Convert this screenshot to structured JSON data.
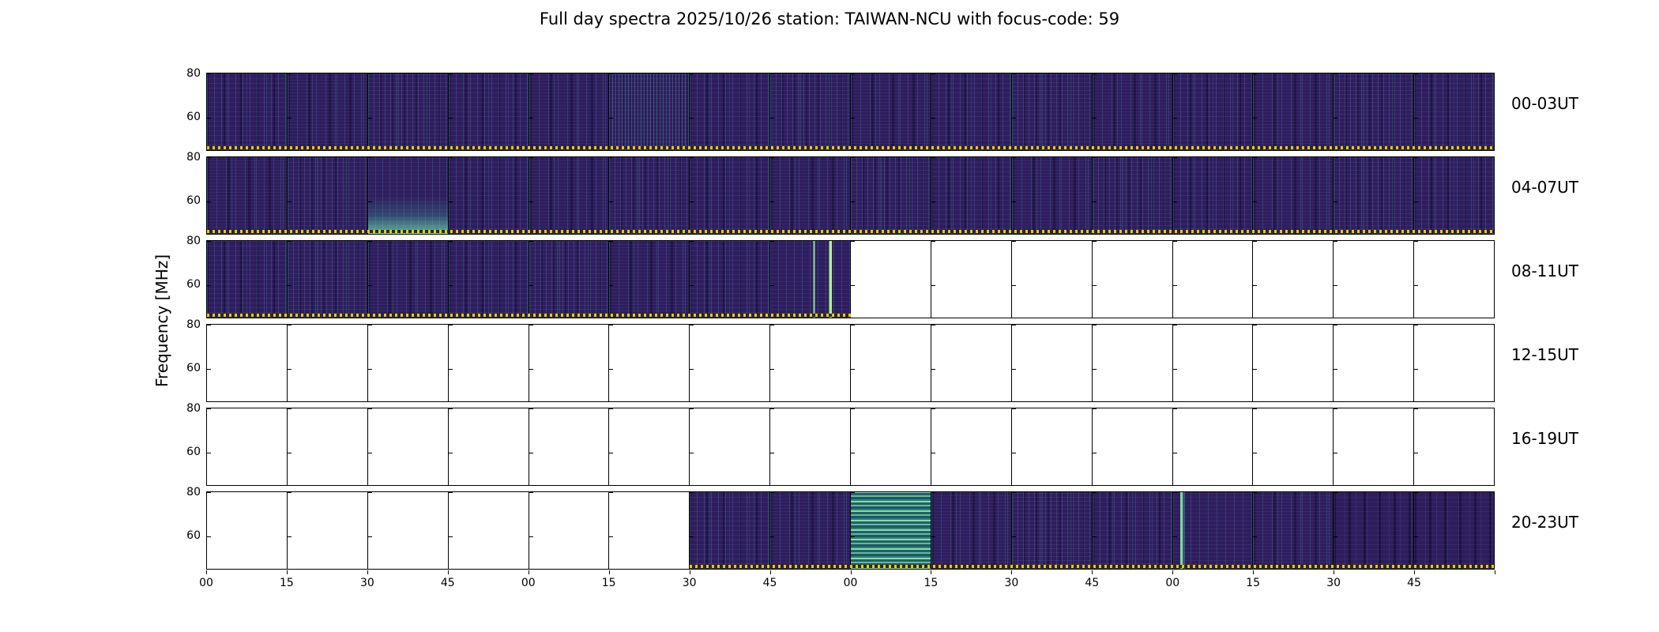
{
  "title": "Full day spectra 2025/10/26 station: TAIWAN-NCU with focus-code: 59",
  "y_axis": {
    "label": "Frequency [MHz]",
    "ticks": [
      "80",
      "60"
    ]
  },
  "x_axis": {
    "tick_labels": [
      "00",
      "15",
      "30",
      "45",
      "00",
      "15",
      "30",
      "45",
      "00",
      "15",
      "30",
      "45",
      "00",
      "15",
      "30",
      "45"
    ]
  },
  "rows": [
    {
      "label": "00-03UT",
      "panels": [
        "a",
        "b",
        "c",
        "a",
        "b",
        "dense",
        "a",
        "c",
        "b",
        "a",
        "c",
        "b",
        "a",
        "b",
        "c",
        "a"
      ]
    },
    {
      "label": "04-07UT",
      "panels": [
        "b",
        "c",
        "bottomteal",
        "a",
        "b",
        "c",
        "a",
        "b",
        "c",
        "a",
        "b",
        "c",
        "a",
        "b",
        "c",
        "a"
      ]
    },
    {
      "label": "08-11UT",
      "panels": [
        "a",
        "c",
        "b",
        "a",
        "c",
        "b",
        "a",
        "brightlines",
        "",
        "",
        "",
        "",
        "",
        "",
        "",
        ""
      ]
    },
    {
      "label": "12-15UT",
      "panels": [
        "",
        "",
        "",
        "",
        "",
        "",
        "",
        "",
        "",
        "",
        "",
        "",
        "",
        "",
        "",
        ""
      ]
    },
    {
      "label": "16-19UT",
      "panels": [
        "",
        "",
        "",
        "",
        "",
        "",
        "",
        "",
        "",
        "",
        "",
        "",
        "",
        "",
        "",
        ""
      ]
    },
    {
      "label": "20-23UT",
      "panels": [
        "",
        "",
        "",
        "",
        "",
        "",
        "a",
        "b",
        "greenband",
        "b",
        "c",
        "a",
        "streak",
        "b",
        "d",
        "d"
      ]
    }
  ],
  "colors": {
    "background": "#ffffff",
    "border": "#000000",
    "spectrogram_base": "#2f1d5e",
    "accent_teal": "#35b779",
    "bright_green": "#8ce6a0",
    "dotted_baseline": "#edc900"
  },
  "chart_data": {
    "type": "heatmap",
    "title": "Full day spectra 2025/10/26 station: TAIWAN-NCU with focus-code: 59",
    "station": "TAIWAN-NCU",
    "date": "2025/10/26",
    "focus_code": "59",
    "ylabel": "Frequency [MHz]",
    "y_ticks_mhz": [
      80,
      60
    ],
    "freq_range_mhz": [
      45,
      80
    ],
    "colormap": "viridis",
    "panels_per_row": 16,
    "minutes_per_panel": 15,
    "x_tick_labels": [
      "00",
      "15",
      "30",
      "45",
      "00",
      "15",
      "30",
      "45",
      "00",
      "15",
      "30",
      "45",
      "00",
      "15",
      "30",
      "45"
    ],
    "rows": [
      {
        "label": "00-03UT",
        "coverage": "full",
        "filled_panels": [
          1,
          16
        ]
      },
      {
        "label": "04-07UT",
        "coverage": "full",
        "filled_panels": [
          1,
          16
        ]
      },
      {
        "label": "08-11UT",
        "coverage": "08:00-10:00 filled, 10:00-12:00 empty",
        "filled_panels": [
          1,
          8
        ]
      },
      {
        "label": "12-15UT",
        "coverage": "empty",
        "filled_panels": []
      },
      {
        "label": "16-19UT",
        "coverage": "empty",
        "filled_panels": []
      },
      {
        "label": "20-23UT",
        "coverage": "20:00-21:30 empty, 21:30-24:00 filled",
        "filled_panels": [
          7,
          16
        ]
      }
    ],
    "highlights": [
      "bright horizontal emission band near 22:00-22:15 UT",
      "bright vertical streaks near 09:45-10:00 UT",
      "enhanced teal emission at low frequencies near 04:30-04:45 UT",
      "dense vertical striping near 01:15-01:30 UT"
    ]
  }
}
